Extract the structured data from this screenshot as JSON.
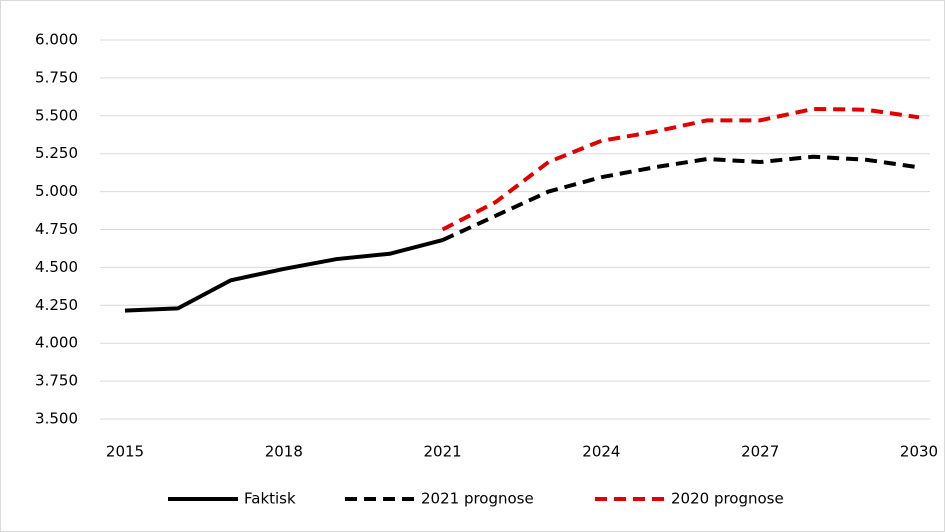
{
  "chart_data": {
    "type": "line",
    "x": [
      2015,
      2016,
      2017,
      2018,
      2019,
      2020,
      2021,
      2022,
      2023,
      2024,
      2025,
      2026,
      2027,
      2028,
      2029,
      2030
    ],
    "series": [
      {
        "name": "Faktisk",
        "color": "#000000",
        "dash": false,
        "values": [
          4215,
          4230,
          4415,
          4490,
          4555,
          4590,
          4680,
          null,
          null,
          null,
          null,
          null,
          null,
          null,
          null,
          null
        ]
      },
      {
        "name": "2021 prognose",
        "color": "#000000",
        "dash": true,
        "values": [
          null,
          null,
          null,
          null,
          null,
          null,
          4680,
          4840,
          5000,
          5095,
          5160,
          5215,
          5195,
          5230,
          5210,
          5160
        ]
      },
      {
        "name": "2020 prognose",
        "color": "#e00000",
        "dash": true,
        "values": [
          null,
          null,
          null,
          null,
          null,
          null,
          4750,
          4930,
          5195,
          5335,
          5395,
          5470,
          5470,
          5545,
          5540,
          5490
        ]
      }
    ],
    "xlim": [
      2015,
      2030
    ],
    "xticks": [
      2015,
      2018,
      2021,
      2024,
      2027,
      2030
    ],
    "ylim": [
      3500,
      6000
    ],
    "yticks": [
      {
        "value": 3500,
        "label": "3.500"
      },
      {
        "value": 3750,
        "label": "3.750"
      },
      {
        "value": 4000,
        "label": "4.000"
      },
      {
        "value": 4250,
        "label": "4.250"
      },
      {
        "value": 4500,
        "label": "4.500"
      },
      {
        "value": 4750,
        "label": "4.750"
      },
      {
        "value": 5000,
        "label": "5.000"
      },
      {
        "value": 5250,
        "label": "5.250"
      },
      {
        "value": 5500,
        "label": "5.500"
      },
      {
        "value": 5750,
        "label": "5.750"
      },
      {
        "value": 6000,
        "label": "6.000"
      }
    ],
    "grid": true,
    "legend": "bottom"
  }
}
